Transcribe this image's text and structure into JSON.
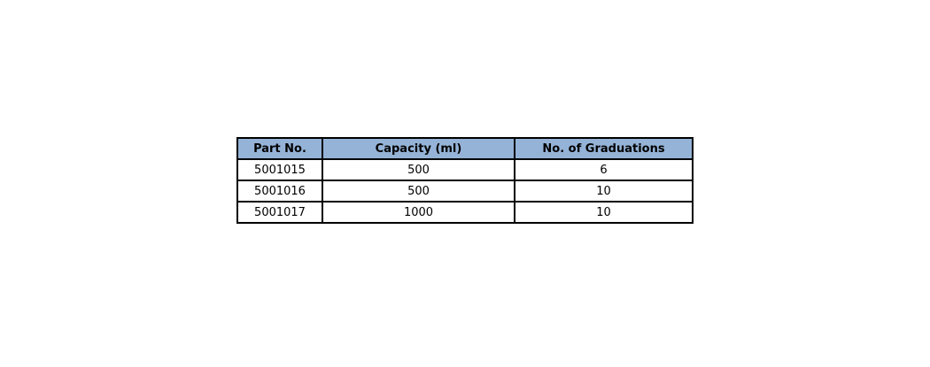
{
  "table": {
    "header": [
      "Part No.",
      "Capacity (ml)",
      "No. of Graduations"
    ],
    "rows": [
      [
        "5001015",
        "500",
        "6"
      ],
      [
        "5001016",
        "500",
        "10"
      ],
      [
        "5001017",
        "1000",
        "10"
      ]
    ]
  }
}
